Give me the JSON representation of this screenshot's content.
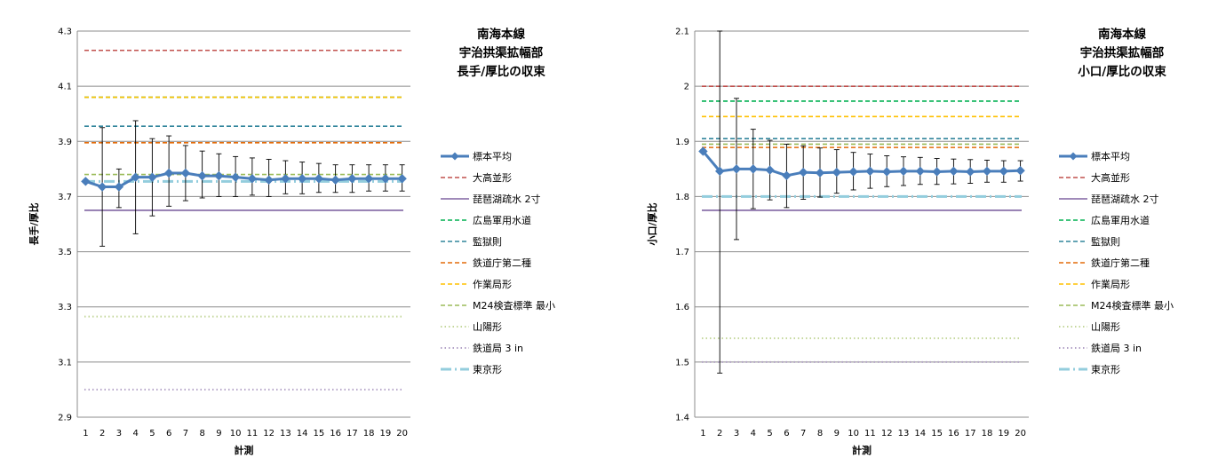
{
  "chart_data": [
    {
      "type": "line",
      "title": [
        "南海本線",
        "宇治拱渠拡幅部",
        "長手/厚比の収束"
      ],
      "xlabel": "計測",
      "ylabel": "長手/厚比",
      "x": [
        1,
        2,
        3,
        4,
        5,
        6,
        7,
        8,
        9,
        10,
        11,
        12,
        13,
        14,
        15,
        16,
        17,
        18,
        19,
        20
      ],
      "ylim": [
        2.9,
        4.3
      ],
      "yticks": [
        "2.9",
        "3.1",
        "3.3",
        "3.5",
        "3.7",
        "3.9",
        "4.1",
        "4.3"
      ],
      "grid": true,
      "legend_position": "right",
      "mean_series": {
        "name": "標本平均",
        "color": "#4A7EBB",
        "values": [
          3.755,
          3.735,
          3.735,
          3.77,
          3.77,
          3.785,
          3.785,
          3.775,
          3.775,
          3.77,
          3.765,
          3.76,
          3.765,
          3.765,
          3.765,
          3.76,
          3.765,
          3.765,
          3.765,
          3.765
        ],
        "error_upper": [
          3.76,
          3.95,
          3.8,
          3.975,
          3.91,
          3.92,
          3.885,
          3.865,
          3.855,
          3.845,
          3.84,
          3.835,
          3.83,
          3.825,
          3.82,
          3.815,
          3.815,
          3.815,
          3.815,
          3.815
        ],
        "error_lower": [
          3.75,
          3.52,
          3.66,
          3.565,
          3.63,
          3.665,
          3.685,
          3.695,
          3.7,
          3.7,
          3.705,
          3.7,
          3.71,
          3.71,
          3.715,
          3.715,
          3.715,
          3.72,
          3.72,
          3.72
        ]
      },
      "reference_lines": [
        {
          "name": "大高並形",
          "value": 4.23,
          "color": "#C0504D",
          "style": "dash"
        },
        {
          "name": "琵琶湖疏水 2寸",
          "value": 3.65,
          "color": "#8064A2",
          "style": "solid"
        },
        {
          "name": "広島軍用水道",
          "value": 4.06,
          "color": "#00B050",
          "style": "dash"
        },
        {
          "name": "監獄則",
          "value": 3.955,
          "color": "#31859C",
          "style": "dash"
        },
        {
          "name": "鉄道庁第二種",
          "value": 3.895,
          "color": "#E46C0A",
          "style": "dash"
        },
        {
          "name": "作業局形",
          "value": 4.06,
          "color": "#FFC000",
          "style": "dash"
        },
        {
          "name": "M24検査標準 最小",
          "value": 3.78,
          "color": "#9BBB59",
          "style": "dash"
        },
        {
          "name": "山陽形",
          "value": 3.265,
          "color": "#C4D79B",
          "style": "dot"
        },
        {
          "name": "鉄道局 3 in",
          "value": 3.0,
          "color": "#B3A2C7",
          "style": "dot"
        },
        {
          "name": "東京形",
          "value": 3.755,
          "color": "#93CDDD",
          "style": "dashdot"
        }
      ]
    },
    {
      "type": "line",
      "title": [
        "南海本線",
        "宇治拱渠拡幅部",
        "小口/厚比の収束"
      ],
      "xlabel": "計測",
      "ylabel": "小口/厚比",
      "x": [
        1,
        2,
        3,
        4,
        5,
        6,
        7,
        8,
        9,
        10,
        11,
        12,
        13,
        14,
        15,
        16,
        17,
        18,
        19,
        20
      ],
      "ylim": [
        1.4,
        2.1
      ],
      "yticks": [
        "1.4",
        "1.5",
        "1.6",
        "1.7",
        "1.8",
        "1.9",
        "2",
        "2.1"
      ],
      "grid": true,
      "legend_position": "right",
      "mean_series": {
        "name": "標本平均",
        "color": "#4A7EBB",
        "values": [
          1.882,
          1.846,
          1.85,
          1.85,
          1.848,
          1.838,
          1.844,
          1.843,
          1.844,
          1.845,
          1.846,
          1.845,
          1.846,
          1.846,
          1.845,
          1.846,
          1.845,
          1.846,
          1.846,
          1.847
        ],
        "error_upper": [
          1.885,
          2.1,
          1.978,
          1.922,
          1.902,
          1.895,
          1.892,
          1.888,
          1.885,
          1.88,
          1.877,
          1.874,
          1.872,
          1.871,
          1.869,
          1.868,
          1.867,
          1.866,
          1.865,
          1.865
        ],
        "error_lower": [
          1.88,
          1.48,
          1.722,
          1.778,
          1.794,
          1.78,
          1.795,
          1.799,
          1.806,
          1.812,
          1.815,
          1.818,
          1.82,
          1.822,
          1.822,
          1.823,
          1.824,
          1.826,
          1.826,
          1.828
        ]
      },
      "reference_lines": [
        {
          "name": "大高並形",
          "value": 2.0,
          "color": "#C0504D",
          "style": "dash"
        },
        {
          "name": "琵琶湖疏水 2寸",
          "value": 1.775,
          "color": "#8064A2",
          "style": "solid"
        },
        {
          "name": "広島軍用水道",
          "value": 1.973,
          "color": "#00B050",
          "style": "dash"
        },
        {
          "name": "監獄則",
          "value": 1.905,
          "color": "#31859C",
          "style": "dash"
        },
        {
          "name": "鉄道庁第二種",
          "value": 1.889,
          "color": "#E46C0A",
          "style": "dash"
        },
        {
          "name": "作業局形",
          "value": 1.945,
          "color": "#FFC000",
          "style": "dash"
        },
        {
          "name": "M24検査標準 最小",
          "value": 1.895,
          "color": "#9BBB59",
          "style": "dash"
        },
        {
          "name": "山陽形",
          "value": 1.543,
          "color": "#C4D79B",
          "style": "dot"
        },
        {
          "name": "鉄道局 3 in",
          "value": 1.5,
          "color": "#B3A2C7",
          "style": "dot"
        },
        {
          "name": "東京形",
          "value": 1.8,
          "color": "#93CDDD",
          "style": "dashdot"
        }
      ]
    }
  ]
}
